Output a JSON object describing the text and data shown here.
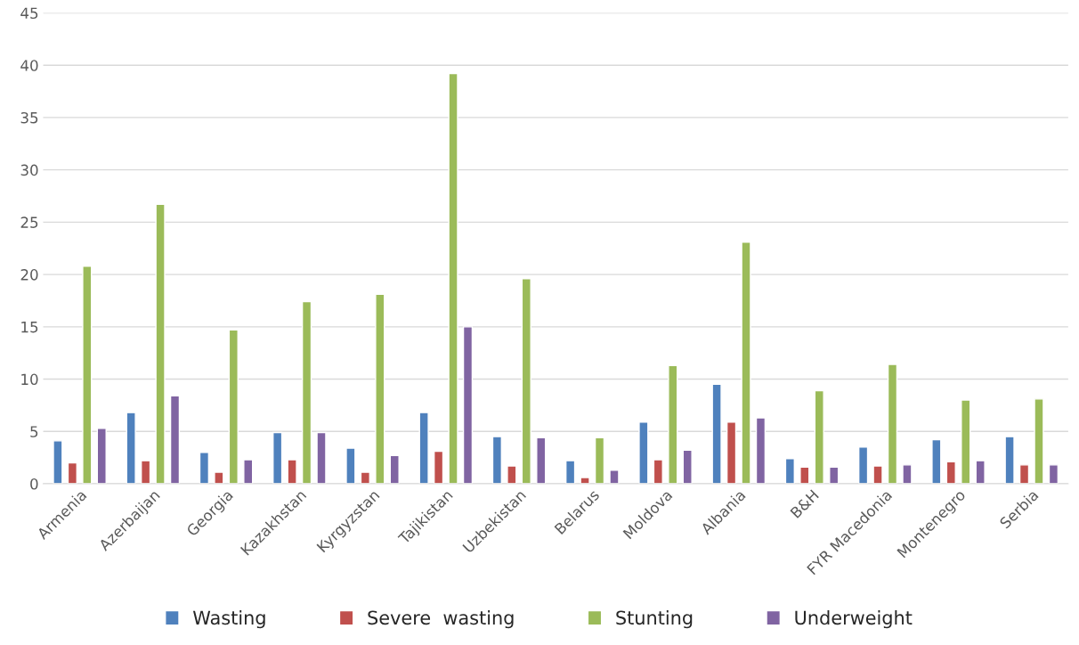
{
  "chart_data": {
    "type": "bar",
    "categories": [
      "Armenia",
      "Azerbaijan",
      "Georgia",
      "Kazakhstan",
      "Kyrgyzstan",
      "Tajikistan",
      "Uzbekistan",
      "Belarus",
      "Moldova",
      "Albania",
      "B&H",
      "FYR Macedonia",
      "Montenegro",
      "Serbia"
    ],
    "series": [
      {
        "name": "Wasting",
        "color": "#4f81bd",
        "values": [
          4.1,
          6.8,
          3.0,
          4.9,
          3.4,
          6.8,
          4.5,
          2.2,
          5.9,
          9.5,
          2.4,
          3.5,
          4.2,
          4.5
        ]
      },
      {
        "name": "Severe  wasting",
        "color": "#c0504d",
        "values": [
          2.0,
          2.2,
          1.1,
          2.3,
          1.1,
          3.1,
          1.7,
          0.6,
          2.3,
          5.9,
          1.6,
          1.7,
          2.1,
          1.8
        ]
      },
      {
        "name": "Stunting",
        "color": "#9bbb59",
        "values": [
          20.8,
          26.7,
          14.7,
          17.4,
          18.1,
          39.2,
          19.6,
          4.4,
          11.3,
          23.1,
          8.9,
          11.4,
          8.0,
          8.1
        ]
      },
      {
        "name": "Underweight",
        "color": "#8064a2",
        "values": [
          5.3,
          8.4,
          2.3,
          4.9,
          2.7,
          15.0,
          4.4,
          1.3,
          3.2,
          6.3,
          1.6,
          1.8,
          2.2,
          1.8
        ]
      }
    ],
    "ylim": [
      0,
      45
    ],
    "yticks": [
      0,
      5,
      10,
      15,
      20,
      25,
      30,
      35,
      40,
      45
    ],
    "grid": "y",
    "legend": "bottom"
  }
}
